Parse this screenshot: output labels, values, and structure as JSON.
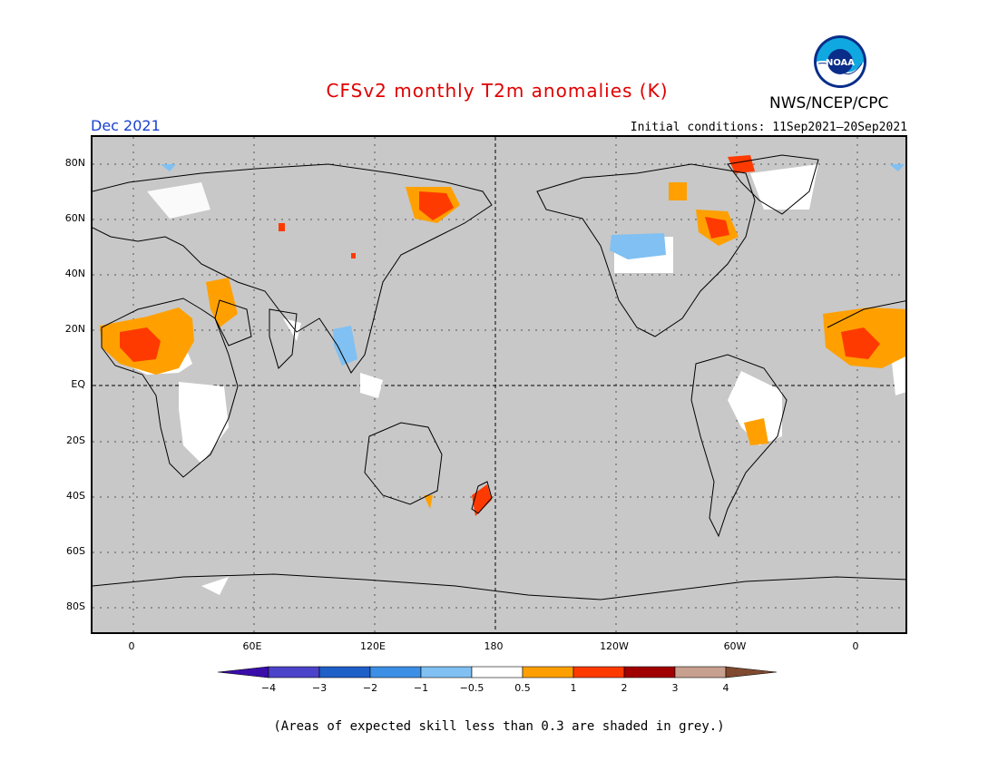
{
  "header": {
    "title": "CFSv2 monthly T2m anomalies (K)",
    "agency": "NWS/NCEP/CPC",
    "logo_text": "NOAA",
    "month": "Dec 2021",
    "initial_conditions": "Initial conditions: 11Sep2021–20Sep2021"
  },
  "axes": {
    "lat_labels": [
      "80N",
      "60N",
      "40N",
      "20N",
      "EQ",
      "20S",
      "40S",
      "60S",
      "80S"
    ],
    "lon_labels": [
      "0",
      "60E",
      "120E",
      "180",
      "120W",
      "60W",
      "0"
    ]
  },
  "legend": {
    "ticks": [
      "−4",
      "−3",
      "−2",
      "−1",
      "−0.5",
      "0.5",
      "1",
      "2",
      "3",
      "4"
    ],
    "colors": [
      "#3a0dab",
      "#4b43c9",
      "#1f5fc8",
      "#3d8fe6",
      "#80c0f2",
      "#ffffff",
      "#ffa000",
      "#ff3a00",
      "#a00000",
      "#c8a090",
      "#804a30"
    ]
  },
  "footnote": "(Areas of expected skill less than 0.3 are shaded in grey.)",
  "colors": {
    "skill_grey": "#c8c8c8",
    "title_red": "#e00000",
    "month_blue": "#1a40d0"
  }
}
